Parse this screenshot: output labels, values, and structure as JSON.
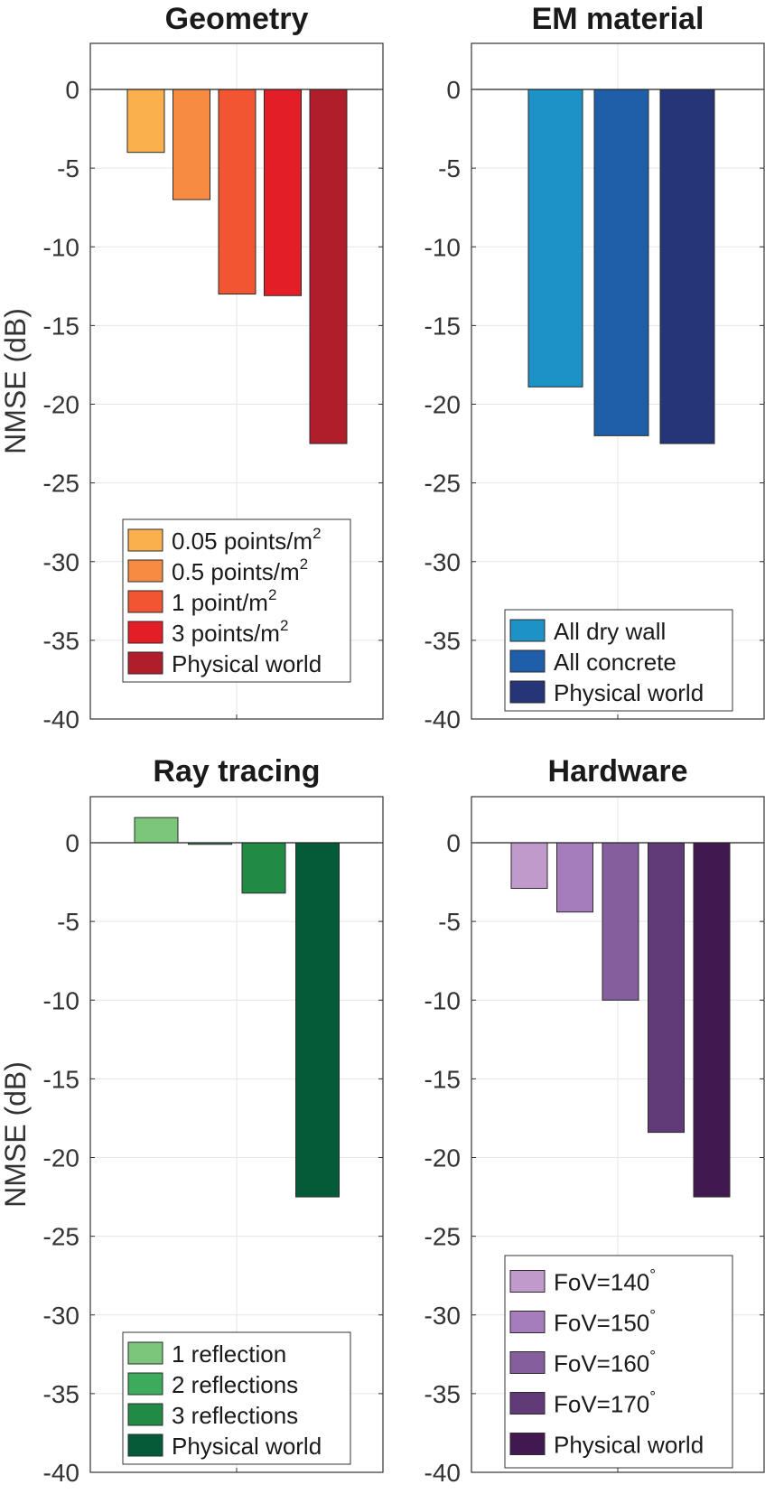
{
  "chart_data": [
    {
      "type": "bar",
      "title": "Geometry",
      "ylabel": "NMSE (dB)",
      "ylim": [
        -40,
        3
      ],
      "yticks": [
        0,
        -5,
        -10,
        -15,
        -20,
        -25,
        -30,
        -35,
        -40
      ],
      "grid": true,
      "legend_position": "bottom-right",
      "series": [
        {
          "name": "0.05 points/m",
          "name_sup": "2",
          "value": -4.0,
          "color": "#FBB04E"
        },
        {
          "name": "0.5 points/m",
          "name_sup": "2",
          "value": -7.0,
          "color": "#F68B41"
        },
        {
          "name": "1 point/m",
          "name_sup": "2",
          "value": -13.0,
          "color": "#F15532"
        },
        {
          "name": "3 points/m",
          "name_sup": "2",
          "value": -13.1,
          "color": "#E31E27"
        },
        {
          "name": "Physical world",
          "name_sup": "",
          "value": -22.5,
          "color": "#AF1E2A"
        }
      ]
    },
    {
      "type": "bar",
      "title": "EM material",
      "ylabel": "",
      "ylim": [
        -40,
        3
      ],
      "yticks": [
        0,
        -5,
        -10,
        -15,
        -20,
        -25,
        -30,
        -35,
        -40
      ],
      "grid": true,
      "legend_position": "bottom-right",
      "series": [
        {
          "name": "All dry wall",
          "name_sup": "",
          "value": -18.9,
          "color": "#1C92C6"
        },
        {
          "name": "All concrete",
          "name_sup": "",
          "value": -22.0,
          "color": "#1F5FAA"
        },
        {
          "name": "Physical world",
          "name_sup": "",
          "value": -22.5,
          "color": "#263478"
        }
      ]
    },
    {
      "type": "bar",
      "title": "Ray tracing",
      "ylabel": "NMSE (dB)",
      "ylim": [
        -40,
        3
      ],
      "yticks": [
        0,
        -5,
        -10,
        -15,
        -20,
        -25,
        -30,
        -35,
        -40
      ],
      "grid": true,
      "legend_position": "bottom-right",
      "series": [
        {
          "name": "1 reflection",
          "name_sup": "",
          "value": 1.6,
          "color": "#7CC67C"
        },
        {
          "name": "2 reflections",
          "name_sup": "",
          "value": -0.1,
          "color": "#3EAA5C"
        },
        {
          "name": "3 reflections",
          "name_sup": "",
          "value": -3.2,
          "color": "#218A45"
        },
        {
          "name": "Physical world",
          "name_sup": "",
          "value": -22.5,
          "color": "#035C37"
        }
      ]
    },
    {
      "type": "bar",
      "title": "Hardware",
      "ylabel": "",
      "ylim": [
        -40,
        3
      ],
      "yticks": [
        0,
        -5,
        -10,
        -15,
        -20,
        -25,
        -30,
        -35,
        -40
      ],
      "grid": true,
      "legend_position": "bottom-right",
      "series": [
        {
          "name": "FoV=140",
          "name_sup": "°",
          "value": -2.9,
          "color": "#C09ACA"
        },
        {
          "name": "FoV=150",
          "name_sup": "°",
          "value": -4.4,
          "color": "#A57DBD"
        },
        {
          "name": "FoV=160",
          "name_sup": "°",
          "value": -10.0,
          "color": "#845E9D"
        },
        {
          "name": "FoV=170",
          "name_sup": "°",
          "value": -18.4,
          "color": "#613B77"
        },
        {
          "name": "Physical world",
          "name_sup": "",
          "value": -22.5,
          "color": "#41184F"
        }
      ]
    }
  ]
}
